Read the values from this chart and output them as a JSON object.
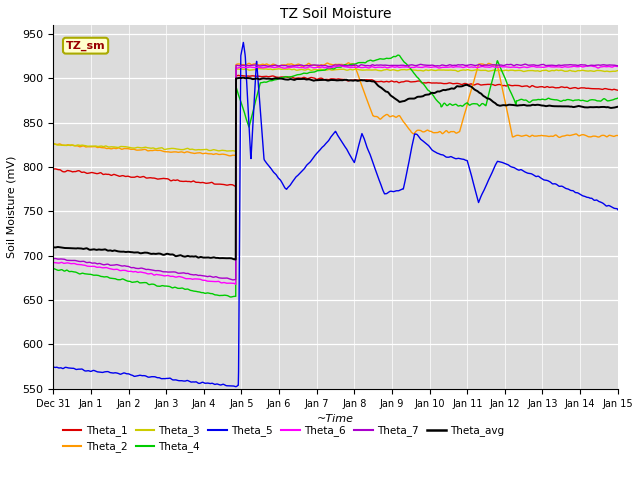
{
  "title": "TZ Soil Moisture",
  "xlabel": "~Time",
  "ylabel": "Soil Moisture (mV)",
  "ylim": [
    550,
    960
  ],
  "yticks": [
    550,
    600,
    650,
    700,
    750,
    800,
    850,
    900,
    950
  ],
  "bg_color": "#dcdcdc",
  "xtick_labels": [
    "Dec 31",
    "Jan 1",
    "Jan 2",
    "Jan 3",
    "Jan 4",
    "Jan 5",
    "Jan 6",
    "Jan 7",
    "Jan 8",
    "Jan 9",
    "Jan 10",
    "Jan 11",
    "Jan 12",
    "Jan 13",
    "Jan 14",
    "Jan 15"
  ],
  "xtick_positions": [
    0,
    1,
    2,
    3,
    4,
    5,
    6,
    7,
    8,
    9,
    10,
    11,
    12,
    13,
    14,
    15
  ],
  "colors": {
    "Theta_1": "#dd0000",
    "Theta_2": "#ff9900",
    "Theta_3": "#cccc00",
    "Theta_4": "#00cc00",
    "Theta_5": "#0000ee",
    "Theta_6": "#ff00ff",
    "Theta_7": "#aa00cc",
    "Theta_avg": "#000000"
  }
}
